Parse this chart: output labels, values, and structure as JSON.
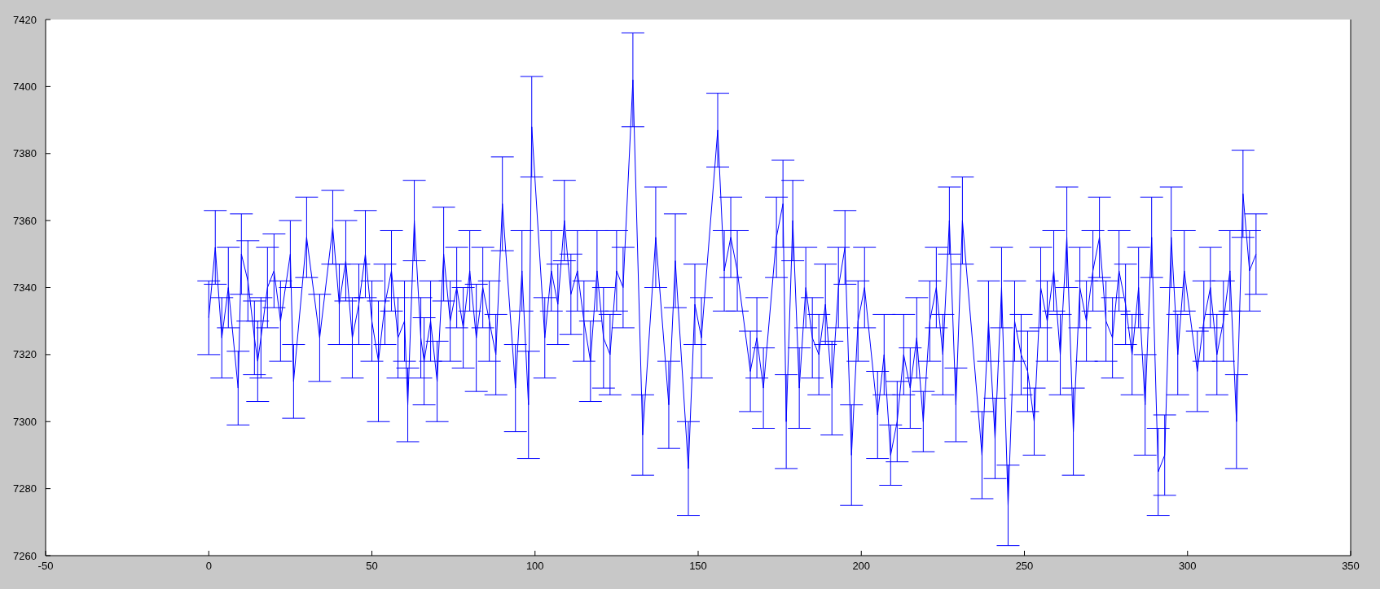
{
  "chart_data": {
    "type": "line",
    "color": "#0000ff",
    "x": [
      0,
      2,
      4,
      6,
      9,
      10,
      12,
      14,
      15,
      16,
      18,
      20,
      22,
      25,
      26,
      30,
      34,
      38,
      40,
      42,
      44,
      46,
      48,
      50,
      52,
      54,
      56,
      58,
      60,
      61,
      63,
      65,
      66,
      68,
      70,
      72,
      74,
      76,
      78,
      80,
      82,
      84,
      86,
      88,
      90,
      94,
      96,
      98,
      99,
      103,
      105,
      107,
      109,
      111,
      113,
      115,
      117,
      119,
      121,
      123,
      125,
      127,
      130,
      133,
      137,
      141,
      143,
      147,
      149,
      151,
      156,
      158,
      160,
      162,
      166,
      168,
      170,
      174,
      176,
      177,
      179,
      181,
      183,
      185,
      187,
      189,
      191,
      193,
      195,
      197,
      199,
      201,
      205,
      207,
      209,
      211,
      213,
      215,
      217,
      219,
      221,
      223,
      225,
      227,
      229,
      231,
      237,
      239,
      241,
      243,
      245,
      247,
      249,
      251,
      253,
      255,
      257,
      259,
      261,
      263,
      265,
      267,
      269,
      271,
      273,
      275,
      277,
      279,
      281,
      283,
      285,
      287,
      289,
      291,
      293,
      295,
      297,
      299,
      303,
      305,
      307,
      309,
      311,
      313,
      315,
      317,
      319,
      321
    ],
    "values": [
      7331,
      7352,
      7325,
      7340,
      7310,
      7350,
      7342,
      7325,
      7318,
      7325,
      7340,
      7345,
      7330,
      7350,
      7312,
      7355,
      7325,
      7358,
      7335,
      7348,
      7325,
      7335,
      7350,
      7330,
      7318,
      7335,
      7345,
      7325,
      7330,
      7305,
      7360,
      7325,
      7318,
      7330,
      7312,
      7350,
      7330,
      7340,
      7328,
      7345,
      7325,
      7340,
      7330,
      7320,
      7365,
      7310,
      7345,
      7305,
      7388,
      7325,
      7345,
      7335,
      7360,
      7338,
      7345,
      7330,
      7318,
      7345,
      7325,
      7320,
      7345,
      7340,
      7402,
      7296,
      7355,
      7305,
      7348,
      7286,
      7335,
      7325,
      7387,
      7345,
      7355,
      7345,
      7315,
      7325,
      7310,
      7355,
      7365,
      7300,
      7360,
      7310,
      7340,
      7325,
      7320,
      7335,
      7310,
      7340,
      7352,
      7290,
      7330,
      7340,
      7302,
      7320,
      7290,
      7300,
      7320,
      7310,
      7325,
      7300,
      7330,
      7340,
      7320,
      7360,
      7305,
      7360,
      7290,
      7330,
      7295,
      7340,
      7275,
      7330,
      7320,
      7315,
      7300,
      7340,
      7330,
      7345,
      7320,
      7355,
      7297,
      7340,
      7330,
      7345,
      7355,
      7330,
      7325,
      7345,
      7335,
      7320,
      7340,
      7305,
      7355,
      7285,
      7290,
      7355,
      7320,
      7345,
      7315,
      7330,
      7340,
      7320,
      7330,
      7345,
      7300,
      7368,
      7345,
      7350
    ],
    "errors": [
      11,
      11,
      12,
      12,
      11,
      12,
      12,
      11,
      12,
      12,
      12,
      11,
      12,
      10,
      11,
      12,
      13,
      11,
      12,
      12,
      12,
      12,
      13,
      12,
      18,
      12,
      12,
      12,
      12,
      11,
      12,
      12,
      13,
      12,
      12,
      14,
      12,
      12,
      12,
      12,
      16,
      12,
      12,
      12,
      14,
      13,
      12,
      16,
      15,
      12,
      12,
      12,
      12,
      12,
      12,
      12,
      12,
      12,
      15,
      12,
      12,
      12,
      14,
      12,
      15,
      13,
      14,
      14,
      12,
      12,
      11,
      12,
      12,
      12,
      12,
      12,
      12,
      12,
      13,
      14,
      12,
      12,
      12,
      12,
      12,
      12,
      14,
      12,
      11,
      15,
      12,
      12,
      13,
      12,
      9,
      12,
      12,
      12,
      12,
      9,
      12,
      12,
      12,
      10,
      11,
      13,
      13,
      12,
      12,
      12,
      12,
      12,
      12,
      12,
      10,
      12,
      12,
      12,
      12,
      15,
      13,
      12,
      12,
      12,
      12,
      12,
      12,
      12,
      12,
      12,
      12,
      15,
      12,
      13,
      12,
      15,
      12,
      12,
      12,
      12,
      12,
      12,
      12,
      12,
      14,
      13,
      12,
      12
    ],
    "xlim": [
      -50,
      350
    ],
    "xticks": [
      -50,
      0,
      50,
      100,
      150,
      200,
      250,
      300,
      350
    ],
    "ylim": [
      7260,
      7420
    ],
    "yticks": [
      7260,
      7280,
      7300,
      7320,
      7340,
      7360,
      7380,
      7400,
      7420
    ]
  }
}
